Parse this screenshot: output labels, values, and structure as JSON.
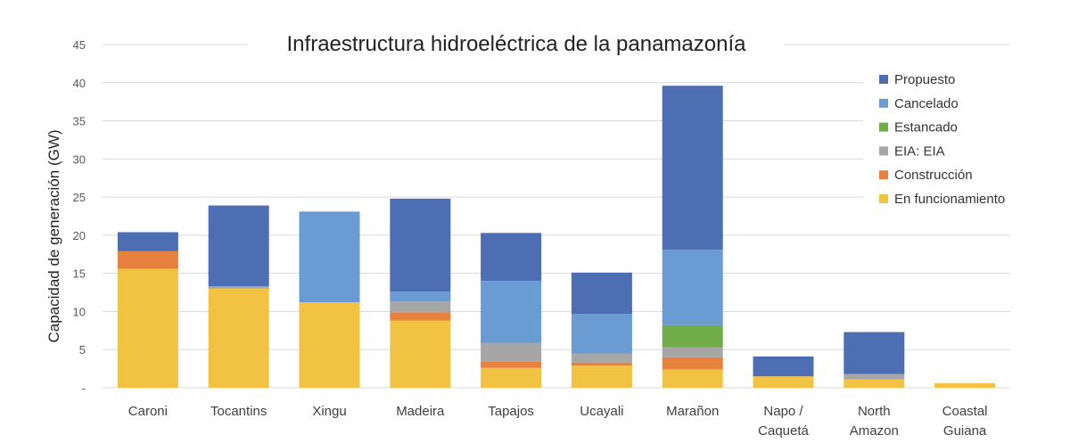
{
  "chart_data": {
    "type": "bar",
    "stacked": true,
    "title": "Infraestructura hidroeléctrica de la panamazonía",
    "xlabel": "",
    "ylabel": "Capacidad de generación (GW)",
    "ylim": [
      0,
      45
    ],
    "yticks": [
      "-",
      "5",
      "10",
      "15",
      "20",
      "25",
      "30",
      "35",
      "40",
      "45"
    ],
    "grid": true,
    "legend_position": "right",
    "categories": [
      [
        "Caroni"
      ],
      [
        "Tocantins"
      ],
      [
        "Xingu"
      ],
      [
        "Madeira"
      ],
      [
        "Tapajos"
      ],
      [
        "Ucayali"
      ],
      [
        "Marañon"
      ],
      [
        "Napo /",
        "Caquetá"
      ],
      [
        "North",
        "Amazon"
      ],
      [
        "Coastal",
        "Guiana"
      ]
    ],
    "series": [
      {
        "name": "En funcionamiento",
        "color": "#F2C343",
        "values": [
          15.6,
          13.0,
          11.2,
          8.8,
          2.6,
          2.9,
          2.4,
          1.5,
          1.1,
          0.6
        ]
      },
      {
        "name": "Construcción",
        "color": "#E7813E",
        "values": [
          2.3,
          0.0,
          0.0,
          1.1,
          0.8,
          0.4,
          1.6,
          0.0,
          0.0,
          0.0
        ]
      },
      {
        "name": "EIA: EIA",
        "color": "#A6A6A6",
        "values": [
          0.0,
          0.3,
          0.0,
          1.4,
          2.5,
          1.2,
          1.3,
          0.0,
          0.7,
          0.0
        ]
      },
      {
        "name": "Estancado",
        "color": "#70AD47",
        "values": [
          0.0,
          0.0,
          0.0,
          0.0,
          0.0,
          0.0,
          2.9,
          0.0,
          0.0,
          0.0
        ]
      },
      {
        "name": "Cancelado",
        "color": "#6A9BD2",
        "values": [
          0.0,
          0.0,
          11.9,
          1.3,
          8.1,
          5.2,
          9.9,
          0.0,
          0.0,
          0.0
        ]
      },
      {
        "name": "Propuesto",
        "color": "#4E6EB4",
        "values": [
          2.5,
          10.6,
          0.0,
          12.2,
          6.3,
          5.4,
          21.5,
          2.6,
          5.5,
          0.0
        ]
      }
    ],
    "legend_order": [
      "Propuesto",
      "Cancelado",
      "Estancado",
      "EIA: EIA",
      "Construcción",
      "En funcionamiento"
    ]
  }
}
